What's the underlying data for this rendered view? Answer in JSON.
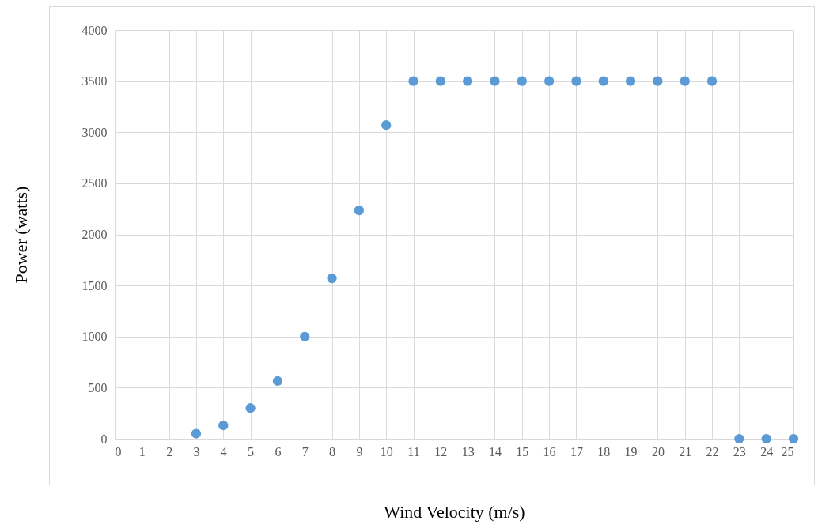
{
  "chart_data": {
    "type": "scatter",
    "xlabel": "Wind Velocity (m/s)",
    "ylabel": "Power (watts)",
    "x": [
      3,
      4,
      5,
      6,
      7,
      8,
      9,
      10,
      11,
      12,
      13,
      14,
      15,
      16,
      17,
      18,
      19,
      20,
      21,
      22,
      23,
      24,
      25
    ],
    "series": [
      {
        "color": "#5b9bd5",
        "values": [
          50,
          130,
          300,
          565,
          1000,
          1570,
          2235,
          3070,
          3500,
          3500,
          3500,
          3500,
          3500,
          3500,
          3500,
          3500,
          3500,
          3500,
          3500,
          3500,
          0,
          0,
          0
        ]
      }
    ],
    "xlim": [
      0,
      25
    ],
    "xticks": [
      0,
      1,
      2,
      3,
      4,
      5,
      6,
      7,
      8,
      9,
      10,
      11,
      12,
      13,
      14,
      15,
      16,
      17,
      18,
      19,
      20,
      21,
      22,
      23,
      24,
      25
    ],
    "ylim": [
      0,
      4000
    ],
    "yticks": [
      0,
      500,
      1000,
      1500,
      2000,
      2500,
      3000,
      3500,
      4000
    ],
    "grid": true,
    "marker": "circle"
  }
}
